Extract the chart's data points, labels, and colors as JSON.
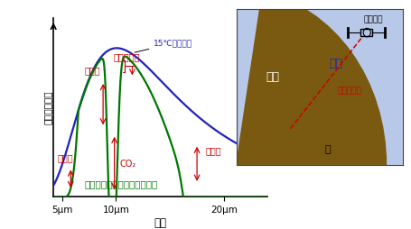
{
  "xlabel": "波長",
  "ylabel": "各波長の強度",
  "xtick_labels": [
    "5μm",
    "10μm",
    "20μm"
  ],
  "xtick_vals": [
    5,
    10,
    20
  ],
  "xlim": [
    4.2,
    24
  ],
  "ylim": [
    0,
    1.08
  ],
  "blue_color": "#2222bb",
  "green_color": "#007700",
  "red_color": "#cc0000",
  "label_15C": "15℃の熱放射",
  "label_satellite": "人工衛星でとった各波長強度",
  "label_ozone": "オゾン",
  "label_co2": "CO₂",
  "label_h2o": "水蒸気",
  "label_methane": "メタン",
  "label_flon": "フロン吸収",
  "label_chikyu": "地球",
  "label_taiki": "大気",
  "label_yoru": "夜",
  "label_jinko_eisei": "人工衛星",
  "label_sekigai": "赤外探知機",
  "inset_bg": "#b8c8e8",
  "earth_color": "#7a5a10",
  "bg_color": "#ffffff"
}
